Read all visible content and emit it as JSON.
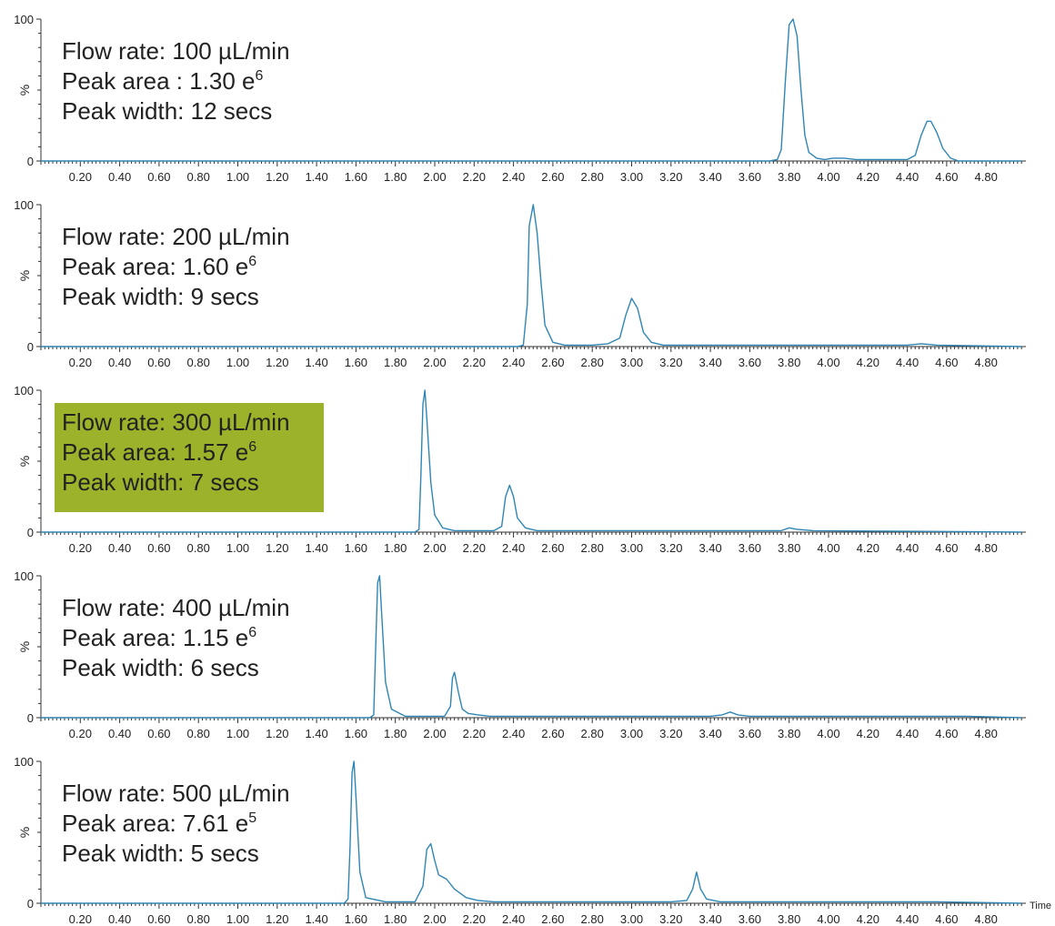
{
  "chart_data": [
    {
      "type": "line",
      "xlim": [
        0,
        4.98
      ],
      "ylim": [
        0,
        100
      ],
      "y_ticks": [
        "0",
        "100"
      ],
      "ylabel": "%",
      "x_ticks": [
        "0.20",
        "0.40",
        "0.60",
        "0.80",
        "1.00",
        "1.20",
        "1.40",
        "1.60",
        "1.80",
        "2.00",
        "2.20",
        "2.40",
        "2.60",
        "2.80",
        "3.00",
        "3.20",
        "3.40",
        "3.60",
        "3.80",
        "4.00",
        "4.20",
        "4.40",
        "4.60",
        "4.80"
      ],
      "xlabel": "",
      "annotation": [
        "Flow rate: 100 µL/min",
        "Peak area : 1.30 e",
        "Peak width: 12 secs"
      ],
      "annotation_superscript": "6",
      "highlighted": false,
      "series": [
        {
          "x": [
            0,
            3.7,
            3.74,
            3.76,
            3.78,
            3.8,
            3.82,
            3.84,
            3.86,
            3.88,
            3.9,
            3.94,
            3.98,
            4.02,
            4.08,
            4.14,
            4.2,
            4.4,
            4.44,
            4.47,
            4.5,
            4.52,
            4.55,
            4.58,
            4.62,
            4.66,
            4.98
          ],
          "y": [
            0,
            0,
            1,
            8,
            55,
            96,
            100,
            88,
            50,
            18,
            6,
            2,
            1,
            2,
            2,
            1,
            1,
            1,
            4,
            18,
            28,
            28,
            20,
            9,
            2,
            0,
            0
          ]
        }
      ]
    },
    {
      "type": "line",
      "xlim": [
        0,
        4.98
      ],
      "ylim": [
        0,
        100
      ],
      "y_ticks": [
        "0",
        "100"
      ],
      "ylabel": "%",
      "x_ticks": [
        "0.20",
        "0.40",
        "0.60",
        "0.80",
        "1.00",
        "1.20",
        "1.40",
        "1.60",
        "1.80",
        "2.00",
        "2.20",
        "2.40",
        "2.60",
        "2.80",
        "3.00",
        "3.20",
        "3.40",
        "3.60",
        "3.80",
        "4.00",
        "4.20",
        "4.40",
        "4.60",
        "4.80"
      ],
      "xlabel": "",
      "annotation": [
        "Flow rate: 200 µL/min",
        "Peak area: 1.60 e",
        "Peak width: 9 secs"
      ],
      "annotation_superscript": "6",
      "highlighted": false,
      "series": [
        {
          "x": [
            0,
            2.42,
            2.45,
            2.47,
            2.48,
            2.5,
            2.52,
            2.54,
            2.56,
            2.6,
            2.66,
            2.8,
            2.88,
            2.94,
            2.97,
            3.0,
            3.03,
            3.06,
            3.1,
            3.16,
            3.3,
            4.4,
            4.47,
            4.55,
            4.98
          ],
          "y": [
            0,
            0,
            1,
            30,
            85,
            100,
            80,
            45,
            15,
            3,
            1,
            1,
            2,
            6,
            22,
            34,
            27,
            10,
            3,
            1,
            1,
            1,
            2,
            1,
            0
          ]
        }
      ]
    },
    {
      "type": "line",
      "xlim": [
        0,
        4.98
      ],
      "ylim": [
        0,
        100
      ],
      "y_ticks": [
        "0",
        "100"
      ],
      "ylabel": "%",
      "x_ticks": [
        "0.20",
        "0.40",
        "0.60",
        "0.80",
        "1.00",
        "1.20",
        "1.40",
        "1.60",
        "1.80",
        "2.00",
        "2.20",
        "2.40",
        "2.60",
        "2.80",
        "3.00",
        "3.20",
        "3.40",
        "3.60",
        "3.80",
        "4.00",
        "4.20",
        "4.40",
        "4.60",
        "4.80"
      ],
      "xlabel": "",
      "annotation": [
        "Flow rate: 300 µL/min",
        "Peak area: 1.57 e",
        "Peak width: 7 secs"
      ],
      "annotation_superscript": "6",
      "highlighted": true,
      "series": [
        {
          "x": [
            0,
            1.9,
            1.92,
            1.93,
            1.94,
            1.95,
            1.96,
            1.98,
            2.0,
            2.04,
            2.1,
            2.3,
            2.34,
            2.36,
            2.38,
            2.4,
            2.42,
            2.46,
            2.52,
            2.7,
            3.6,
            3.76,
            3.8,
            3.84,
            3.92,
            4.98
          ],
          "y": [
            0,
            0,
            2,
            40,
            90,
            100,
            80,
            35,
            12,
            3,
            1,
            1,
            4,
            25,
            33,
            25,
            10,
            3,
            1,
            1,
            1,
            1,
            3,
            2,
            1,
            0
          ]
        }
      ]
    },
    {
      "type": "line",
      "xlim": [
        0,
        4.98
      ],
      "ylim": [
        0,
        100
      ],
      "y_ticks": [
        "0",
        "100"
      ],
      "ylabel": "%",
      "x_ticks": [
        "0.20",
        "0.40",
        "0.60",
        "0.80",
        "1.00",
        "1.20",
        "1.40",
        "1.60",
        "1.80",
        "2.00",
        "2.20",
        "2.40",
        "2.60",
        "2.80",
        "3.00",
        "3.20",
        "3.40",
        "3.60",
        "3.80",
        "4.00",
        "4.20",
        "4.40",
        "4.60",
        "4.80"
      ],
      "xlabel": "",
      "annotation": [
        "Flow rate: 400 µL/min",
        "Peak area: 1.15 e",
        "Peak width: 6 secs"
      ],
      "annotation_superscript": "6",
      "highlighted": false,
      "series": [
        {
          "x": [
            0,
            1.67,
            1.69,
            1.7,
            1.71,
            1.72,
            1.73,
            1.75,
            1.78,
            1.85,
            2.05,
            2.08,
            2.09,
            2.1,
            2.12,
            2.14,
            2.17,
            2.22,
            2.28,
            2.5,
            3.4,
            3.46,
            3.5,
            3.54,
            3.6,
            4.7,
            4.98
          ],
          "y": [
            0,
            0,
            2,
            50,
            95,
            100,
            75,
            25,
            6,
            1,
            1,
            8,
            28,
            32,
            18,
            6,
            3,
            2,
            1,
            1,
            1,
            2,
            4,
            2,
            1,
            1,
            0
          ]
        }
      ]
    },
    {
      "type": "line",
      "xlim": [
        0,
        4.98
      ],
      "ylim": [
        0,
        100
      ],
      "y_ticks": [
        "0",
        "100"
      ],
      "ylabel": "%",
      "x_ticks": [
        "0.20",
        "0.40",
        "0.60",
        "0.80",
        "1.00",
        "1.20",
        "1.40",
        "1.60",
        "1.80",
        "2.00",
        "2.20",
        "2.40",
        "2.60",
        "2.80",
        "3.00",
        "3.20",
        "3.40",
        "3.60",
        "3.80",
        "4.00",
        "4.20",
        "4.40",
        "4.60",
        "4.80"
      ],
      "xlabel": "Time",
      "annotation": [
        "Flow rate: 500 µL/min",
        "Peak area: 7.61 e",
        "Peak width: 5 secs"
      ],
      "annotation_superscript": "5",
      "highlighted": false,
      "series": [
        {
          "x": [
            0,
            1.54,
            1.56,
            1.57,
            1.58,
            1.59,
            1.6,
            1.62,
            1.65,
            1.75,
            1.9,
            1.94,
            1.96,
            1.98,
            2.0,
            2.02,
            2.06,
            2.1,
            2.16,
            2.22,
            2.3,
            3.2,
            3.28,
            3.31,
            3.33,
            3.35,
            3.38,
            3.45,
            4.55,
            4.98
          ],
          "y": [
            0,
            0,
            3,
            40,
            92,
            100,
            75,
            22,
            4,
            1,
            1,
            12,
            38,
            42,
            30,
            20,
            17,
            10,
            4,
            2,
            1,
            1,
            2,
            10,
            22,
            10,
            3,
            1,
            1,
            0
          ]
        }
      ]
    }
  ]
}
